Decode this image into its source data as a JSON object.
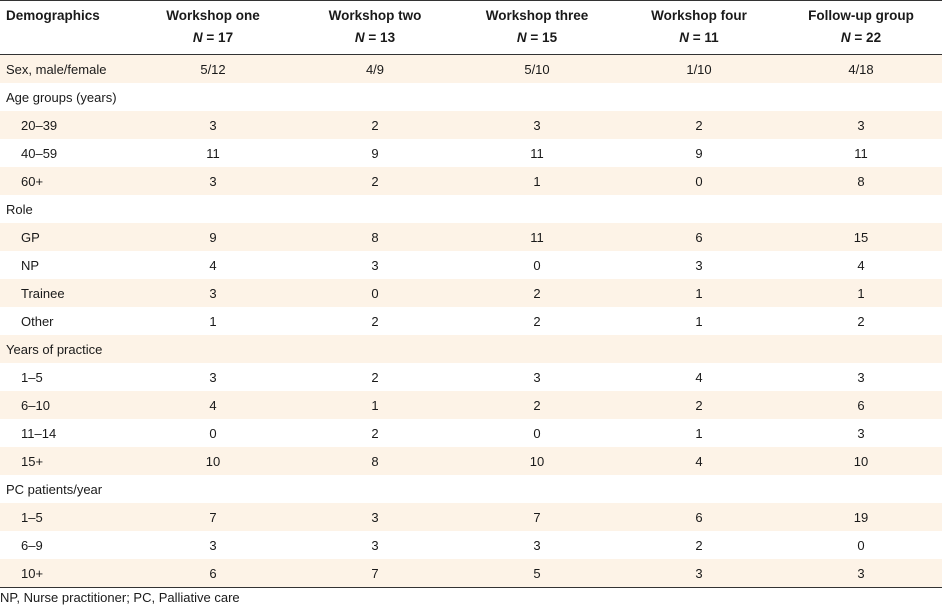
{
  "header": {
    "col0": "Demographics",
    "groups": [
      {
        "name": "Workshop one",
        "n_label": "N",
        "n_rest": " = 17"
      },
      {
        "name": "Workshop two",
        "n_label": "N",
        "n_rest": " = 13"
      },
      {
        "name": "Workshop three",
        "n_label": "N",
        "n_rest": " = 15"
      },
      {
        "name": "Workshop four",
        "n_label": "N",
        "n_rest": " = 11"
      },
      {
        "name": "Follow-up group",
        "n_label": "N",
        "n_rest": " = 22"
      }
    ]
  },
  "rows": [
    {
      "label": "Sex, male/female",
      "values": [
        "5/12",
        "4/9",
        "5/10",
        "1/10",
        "4/18"
      ],
      "sub": false,
      "shade": true
    },
    {
      "label": "Age groups (years)",
      "values": [
        "",
        "",
        "",
        "",
        ""
      ],
      "sub": false,
      "shade": false
    },
    {
      "label": "20–39",
      "values": [
        "3",
        "2",
        "3",
        "2",
        "3"
      ],
      "sub": true,
      "shade": true
    },
    {
      "label": "40–59",
      "values": [
        "11",
        "9",
        "11",
        "9",
        "11"
      ],
      "sub": true,
      "shade": false
    },
    {
      "label": "60+",
      "values": [
        "3",
        "2",
        "1",
        "0",
        "8"
      ],
      "sub": true,
      "shade": true
    },
    {
      "label": "Role",
      "values": [
        "",
        "",
        "",
        "",
        ""
      ],
      "sub": false,
      "shade": false
    },
    {
      "label": "GP",
      "values": [
        "9",
        "8",
        "11",
        "6",
        "15"
      ],
      "sub": true,
      "shade": true
    },
    {
      "label": "NP",
      "values": [
        "4",
        "3",
        "0",
        "3",
        "4"
      ],
      "sub": true,
      "shade": false
    },
    {
      "label": "Trainee",
      "values": [
        "3",
        "0",
        "2",
        "1",
        "1"
      ],
      "sub": true,
      "shade": true
    },
    {
      "label": "Other",
      "values": [
        "1",
        "2",
        "2",
        "1",
        "2"
      ],
      "sub": true,
      "shade": false
    },
    {
      "label": "Years of practice",
      "values": [
        "",
        "",
        "",
        "",
        ""
      ],
      "sub": false,
      "shade": true
    },
    {
      "label": "1–5",
      "values": [
        "3",
        "2",
        "3",
        "4",
        "3"
      ],
      "sub": true,
      "shade": false
    },
    {
      "label": "6–10",
      "values": [
        "4",
        "1",
        "2",
        "2",
        "6"
      ],
      "sub": true,
      "shade": true
    },
    {
      "label": "11–14",
      "values": [
        "0",
        "2",
        "0",
        "1",
        "3"
      ],
      "sub": true,
      "shade": false
    },
    {
      "label": "15+",
      "values": [
        "10",
        "8",
        "10",
        "4",
        "10"
      ],
      "sub": true,
      "shade": true
    },
    {
      "label": "PC patients/year",
      "values": [
        "",
        "",
        "",
        "",
        ""
      ],
      "sub": false,
      "shade": false
    },
    {
      "label": "1–5",
      "values": [
        "7",
        "3",
        "7",
        "6",
        "19"
      ],
      "sub": true,
      "shade": true
    },
    {
      "label": "6–9",
      "values": [
        "3",
        "3",
        "3",
        "2",
        "0"
      ],
      "sub": true,
      "shade": false
    },
    {
      "label": "10+",
      "values": [
        "6",
        "7",
        "5",
        "3",
        "3"
      ],
      "sub": true,
      "shade": true
    }
  ],
  "footnote": "NP, Nurse practitioner; PC, Palliative care",
  "colors": {
    "shade": "#fdf3e7",
    "rule": "#333333"
  }
}
